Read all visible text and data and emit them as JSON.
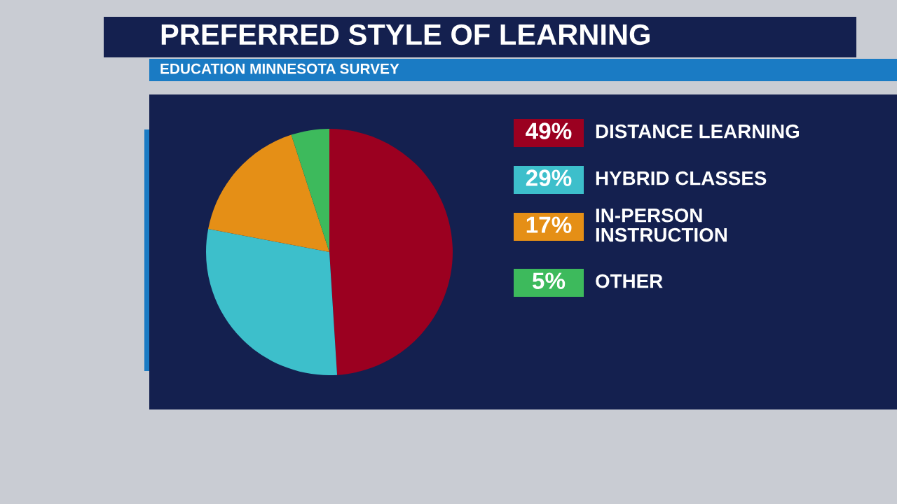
{
  "chart_data": {
    "type": "pie",
    "title": "PREFERRED STYLE OF LEARNING",
    "subtitle": "EDUCATION MINNESOTA SURVEY",
    "categories": [
      "DISTANCE LEARNING",
      "HYBRID CLASSES",
      "IN-PERSON\nINSTRUCTION",
      "OTHER"
    ],
    "values": [
      49,
      29,
      17,
      5
    ],
    "value_labels": [
      "49%",
      "29%",
      "17%",
      "5%"
    ],
    "colors": [
      "#9b0020",
      "#3dbfcb",
      "#e58f16",
      "#3dba5c"
    ],
    "legend": "right"
  }
}
